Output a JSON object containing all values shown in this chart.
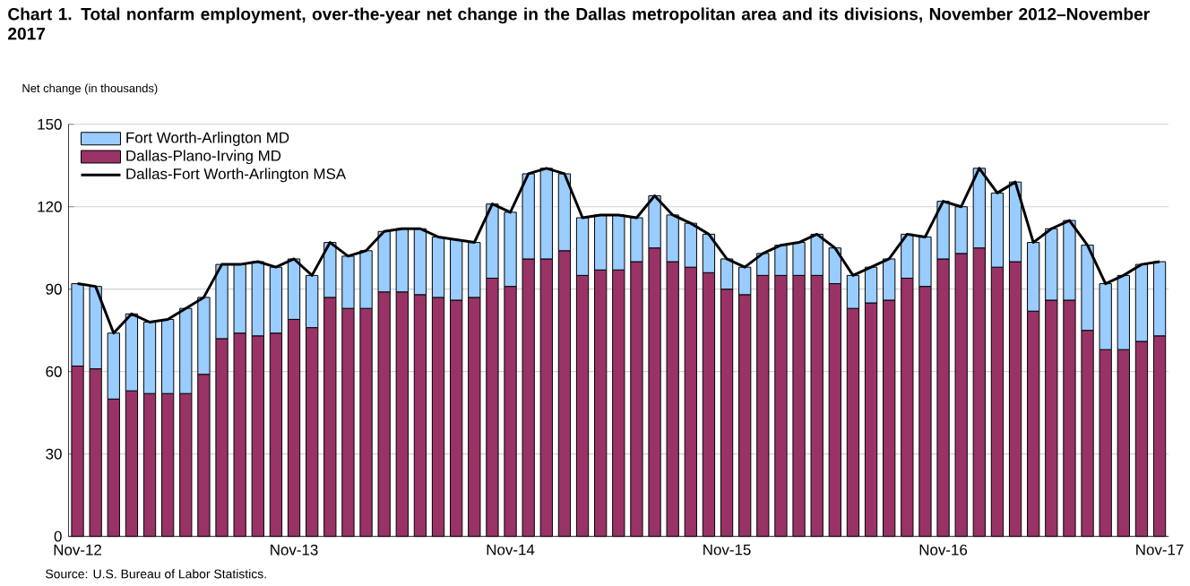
{
  "chart_data": {
    "type": "bar",
    "stacked": true,
    "title": "Chart 1. Total nonfarm employment, over-the-year net change in the Dallas metropolitan area and its divisions, November 2012–November 2017",
    "ylabel": "Net change (in thousands)",
    "annotations": [
      "Source: U.S. Bureau of Labor Statistics."
    ],
    "categories": [
      "Nov-12",
      null,
      null,
      null,
      null,
      null,
      null,
      null,
      null,
      null,
      null,
      null,
      "Nov-13",
      null,
      null,
      null,
      null,
      null,
      null,
      null,
      null,
      null,
      null,
      null,
      "Nov-14",
      null,
      null,
      null,
      null,
      null,
      null,
      null,
      null,
      null,
      null,
      null,
      "Nov-15",
      null,
      null,
      null,
      null,
      null,
      null,
      null,
      null,
      null,
      null,
      null,
      "Nov-16",
      null,
      null,
      null,
      null,
      null,
      null,
      null,
      null,
      null,
      null,
      null,
      "Nov-17"
    ],
    "series": [
      {
        "name": "Dallas-Plano-Irving MD",
        "color": "#993366",
        "values": [
          62,
          61,
          50,
          53,
          52,
          52,
          52,
          59,
          72,
          74,
          73,
          74,
          79,
          76,
          87,
          83,
          83,
          89,
          89,
          88,
          87,
          86,
          87,
          94,
          91,
          101,
          101,
          104,
          95,
          97,
          97,
          100,
          105,
          100,
          98,
          96,
          90,
          88,
          95,
          95,
          95,
          95,
          92,
          83,
          85,
          86,
          94,
          91,
          101,
          103,
          105,
          98,
          100,
          82,
          86,
          86,
          75,
          68,
          68,
          71,
          73
        ]
      },
      {
        "name": "Fort Worth-Arlington MD",
        "color": "#99ccff",
        "values": [
          30,
          30,
          24,
          28,
          26,
          27,
          31,
          28,
          27,
          25,
          27,
          24,
          22,
          19,
          20,
          19,
          21,
          22,
          23,
          24,
          22,
          22,
          20,
          27,
          27,
          31,
          33,
          28,
          21,
          20,
          20,
          16,
          19,
          17,
          16,
          14,
          11,
          10,
          8,
          11,
          12,
          15,
          13,
          12,
          13,
          15,
          16,
          18,
          21,
          17,
          29,
          27,
          29,
          25,
          26,
          29,
          31,
          24,
          27,
          28,
          27
        ]
      },
      {
        "name": "Dallas-Fort Worth-Arlington MSA",
        "type": "line",
        "color": "#000000",
        "values": [
          92,
          91,
          74,
          81,
          78,
          79,
          83,
          87,
          99,
          99,
          100,
          98,
          101,
          95,
          107,
          102,
          104,
          111,
          112,
          112,
          109,
          108,
          107,
          121,
          118,
          132,
          134,
          132,
          116,
          117,
          117,
          116,
          124,
          117,
          114,
          110,
          101,
          98,
          103,
          106,
          107,
          110,
          105,
          95,
          98,
          101,
          110,
          109,
          122,
          120,
          134,
          125,
          129,
          107,
          112,
          115,
          106,
          92,
          95,
          99,
          100
        ]
      }
    ],
    "ylim": [
      0,
      150
    ],
    "yticks": [
      0,
      30,
      60,
      90,
      120,
      150
    ],
    "grid": "y",
    "legend": "top left"
  }
}
